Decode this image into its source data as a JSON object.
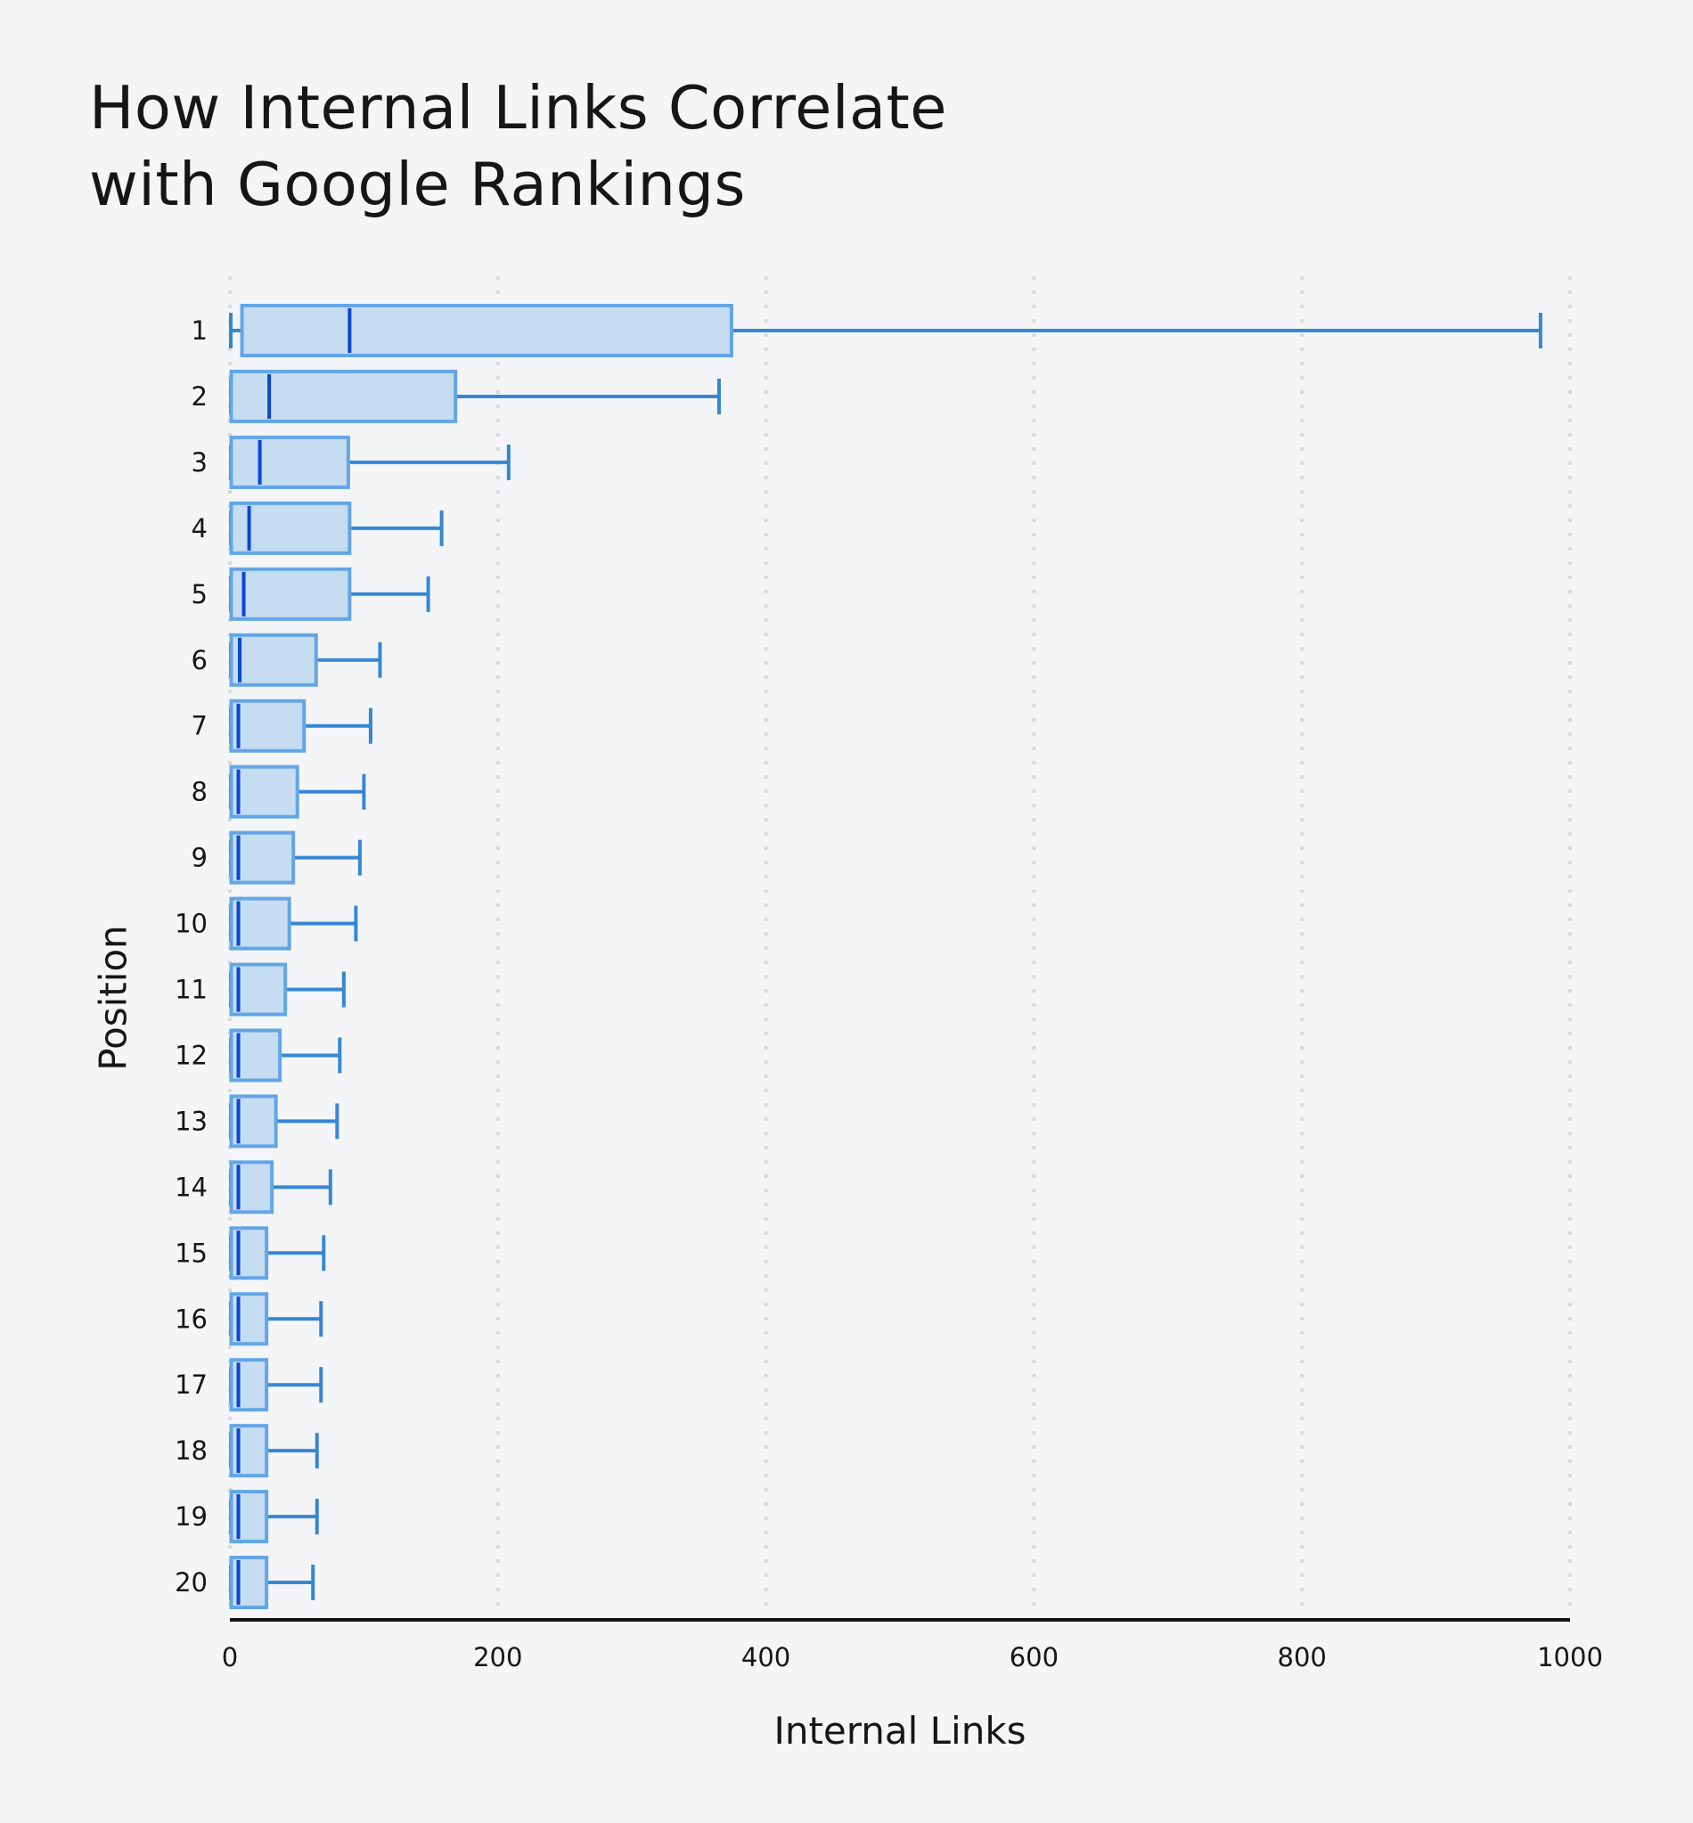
{
  "title": {
    "line1": "How Internal Links Correlate",
    "line2": "with Google Rankings"
  },
  "colors": {
    "background": "#f4f5f7",
    "box_fill": "#c6dcf0",
    "box_stroke": "#63a6e6",
    "whisker": "#3587d4",
    "median": "#0b46d6",
    "grid": "#d9d9d9",
    "axis": "#111111",
    "text": "#161616"
  },
  "chart_data": {
    "type": "boxplot",
    "orientation": "horizontal",
    "title": "How Internal Links Correlate with Google Rankings",
    "xlabel": "Internal Links",
    "ylabel": "Position",
    "xlim": [
      0,
      1000
    ],
    "xticks": [
      0,
      200,
      400,
      600,
      800,
      1000
    ],
    "grid": {
      "x": true,
      "y": false,
      "style": "dotted"
    },
    "categories": [
      "1",
      "2",
      "3",
      "4",
      "5",
      "6",
      "7",
      "8",
      "9",
      "10",
      "11",
      "12",
      "13",
      "14",
      "15",
      "16",
      "17",
      "18",
      "19",
      "20"
    ],
    "series": [
      {
        "position": "1",
        "min": 0,
        "q1": 8,
        "median": 88,
        "q3": 374,
        "max": 978
      },
      {
        "position": "2",
        "min": 0,
        "q1": 0,
        "median": 28,
        "q3": 168,
        "max": 365
      },
      {
        "position": "3",
        "min": 0,
        "q1": 0,
        "median": 21,
        "q3": 88,
        "max": 208
      },
      {
        "position": "4",
        "min": 0,
        "q1": 0,
        "median": 13,
        "q3": 89,
        "max": 158
      },
      {
        "position": "5",
        "min": 0,
        "q1": 0,
        "median": 9,
        "q3": 89,
        "max": 148
      },
      {
        "position": "6",
        "min": 0,
        "q1": 0,
        "median": 6,
        "q3": 64,
        "max": 112
      },
      {
        "position": "7",
        "min": 0,
        "q1": 0,
        "median": 5,
        "q3": 55,
        "max": 105
      },
      {
        "position": "8",
        "min": 0,
        "q1": 0,
        "median": 5,
        "q3": 50,
        "max": 100
      },
      {
        "position": "9",
        "min": 0,
        "q1": 0,
        "median": 5,
        "q3": 47,
        "max": 97
      },
      {
        "position": "10",
        "min": 0,
        "q1": 0,
        "median": 5,
        "q3": 44,
        "max": 94
      },
      {
        "position": "11",
        "min": 0,
        "q1": 0,
        "median": 5,
        "q3": 41,
        "max": 85
      },
      {
        "position": "12",
        "min": 0,
        "q1": 0,
        "median": 5,
        "q3": 37,
        "max": 82
      },
      {
        "position": "13",
        "min": 0,
        "q1": 0,
        "median": 5,
        "q3": 34,
        "max": 80
      },
      {
        "position": "14",
        "min": 0,
        "q1": 0,
        "median": 5,
        "q3": 31,
        "max": 75
      },
      {
        "position": "15",
        "min": 0,
        "q1": 0,
        "median": 5,
        "q3": 27,
        "max": 70
      },
      {
        "position": "16",
        "min": 0,
        "q1": 0,
        "median": 5,
        "q3": 27,
        "max": 68
      },
      {
        "position": "17",
        "min": 0,
        "q1": 0,
        "median": 5,
        "q3": 27,
        "max": 68
      },
      {
        "position": "18",
        "min": 0,
        "q1": 0,
        "median": 5,
        "q3": 27,
        "max": 65
      },
      {
        "position": "19",
        "min": 0,
        "q1": 0,
        "median": 5,
        "q3": 27,
        "max": 65
      },
      {
        "position": "20",
        "min": 0,
        "q1": 0,
        "median": 5,
        "q3": 27,
        "max": 62
      }
    ]
  }
}
